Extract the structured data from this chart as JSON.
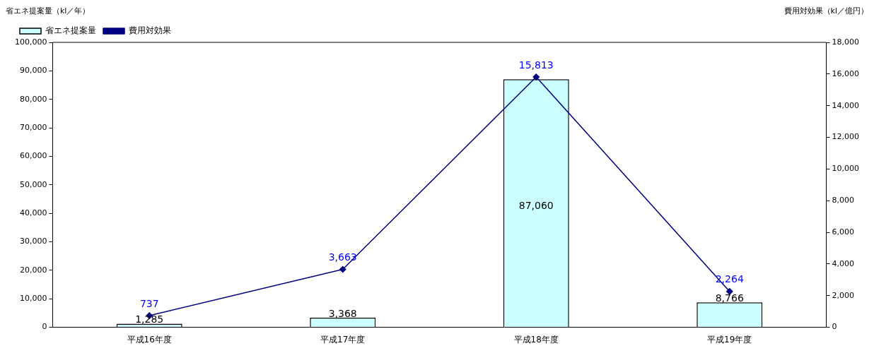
{
  "chart_data": {
    "type": "bar",
    "ylabel": "省エネ提案量（kl／年）",
    "y2label": "費用対効果（kl／億円）",
    "categories": [
      "平成16年度",
      "平成17年度",
      "平成18年度",
      "平成19年度"
    ],
    "series": [
      {
        "name": "省エネ提案量",
        "color": "#ccffff",
        "values": [
          1285,
          3368,
          87060,
          8766
        ],
        "value_labels": [
          "1,285",
          "3,368",
          "87,060",
          "8,766"
        ]
      },
      {
        "name": "費用対効果",
        "type": "line",
        "axis": "y2",
        "color": "#000080",
        "values": [
          737,
          3663,
          15813,
          2264
        ],
        "value_labels": [
          "737",
          "3,663",
          "15,813",
          "2,264"
        ]
      }
    ],
    "ylim": [
      0,
      100000
    ],
    "yticks": [
      0,
      {
        "value": 10000,
        "label": "10,000"
      },
      {
        "value": 20000,
        "label": "20,000"
      },
      {
        "value": 30000,
        "label": "30,000"
      },
      {
        "value": 40000,
        "label": "40,000"
      },
      {
        "value": 50000,
        "label": "50,000"
      },
      {
        "value": 60000,
        "label": "60,000"
      },
      {
        "value": 70000,
        "label": "70,000"
      },
      {
        "value": 80000,
        "label": "80,000"
      },
      {
        "value": 90000,
        "label": "90,000"
      },
      {
        "value": 100000,
        "label": "100,000"
      }
    ],
    "y2lim": [
      0,
      18000
    ],
    "y2ticks": [
      0,
      {
        "value": 2000,
        "label": "2,000"
      },
      {
        "value": 4000,
        "label": "4,000"
      },
      {
        "value": 6000,
        "label": "6,000"
      },
      {
        "value": 8000,
        "label": "8,000"
      },
      {
        "value": 10000,
        "label": "10,000"
      },
      {
        "value": 12000,
        "label": "12,000"
      },
      {
        "value": 14000,
        "label": "14,000"
      },
      {
        "value": 16000,
        "label": "16,000"
      },
      {
        "value": 18000,
        "label": "18,000"
      }
    ],
    "grid": false,
    "legend": "top left",
    "marker": "diamond",
    "line_style": "solid"
  }
}
